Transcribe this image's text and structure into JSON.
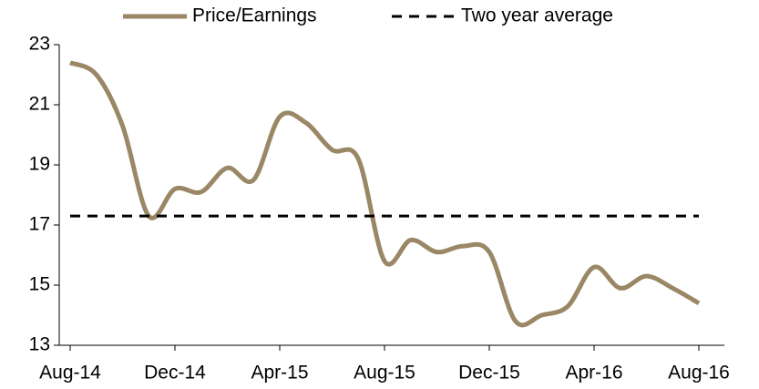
{
  "chart_data": {
    "type": "line",
    "categories": [
      "Aug-14",
      null,
      null,
      null,
      "Dec-14",
      null,
      null,
      null,
      "Apr-15",
      null,
      null,
      null,
      "Aug-15",
      null,
      null,
      null,
      "Dec-15",
      null,
      null,
      null,
      "Apr-16",
      null,
      null,
      null,
      "Aug-16"
    ],
    "series": [
      {
        "name": "Price/Earnings",
        "color": "#9a8765",
        "style": "solid",
        "values": [
          22.4,
          22.0,
          20.3,
          17.3,
          18.2,
          18.1,
          18.9,
          18.5,
          20.6,
          20.4,
          19.5,
          19.2,
          15.8,
          16.5,
          16.1,
          16.3,
          16.1,
          13.8,
          14.0,
          14.3,
          15.6,
          14.9,
          15.3,
          14.9,
          14.4
        ]
      },
      {
        "name": "Two year average",
        "color": "#000000",
        "style": "dashed",
        "values": [
          17.3,
          17.3,
          17.3,
          17.3,
          17.3,
          17.3,
          17.3,
          17.3,
          17.3,
          17.3,
          17.3,
          17.3,
          17.3,
          17.3,
          17.3,
          17.3,
          17.3,
          17.3,
          17.3,
          17.3,
          17.3,
          17.3,
          17.3,
          17.3,
          17.3
        ]
      }
    ],
    "ylim": [
      13,
      23
    ],
    "yticks": [
      13,
      15,
      17,
      19,
      21,
      23
    ],
    "grid": false,
    "legend": "top"
  }
}
